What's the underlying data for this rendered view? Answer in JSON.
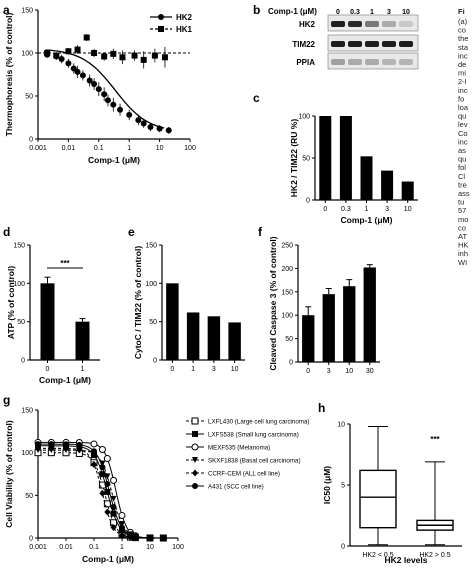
{
  "panels": {
    "a": "a",
    "b": "b",
    "c": "c",
    "d": "d",
    "e": "e",
    "f": "f",
    "g": "g",
    "h": "h"
  },
  "side_caption": {
    "heading": "Fi",
    "lines": [
      "(a)",
      "co",
      "the",
      "sta",
      "inc",
      "de",
      "mi",
      "2-I",
      "inc",
      "fo",
      "loa",
      "qu",
      "lev",
      "Co",
      "inc",
      "as",
      "qu",
      "fol",
      "Cl",
      "tre",
      "ass",
      "tu",
      "57",
      "mo",
      "co",
      "AT",
      "HK",
      "inh",
      "WI"
    ]
  },
  "western_blot": {
    "conc_label": "Comp-1 (μM)",
    "lanes": [
      "0",
      "0.3",
      "1",
      "3",
      "10"
    ],
    "rows": [
      "HK2",
      "TIM22",
      "PPIA"
    ],
    "band_intensity": {
      "HK2": [
        1.0,
        0.95,
        0.55,
        0.3,
        0.15
      ],
      "TIM22": [
        1.0,
        1.0,
        1.0,
        1.0,
        1.0
      ],
      "PPIA": [
        0.35,
        0.3,
        0.3,
        0.25,
        0.25
      ]
    }
  },
  "chart_data": [
    {
      "id": "a",
      "type": "scatter",
      "xlabel": "Comp-1 (μM)",
      "ylabel": "Thermophoresis (% of control)",
      "xscale": "log",
      "xlim": [
        0.001,
        100
      ],
      "ylim": [
        0,
        150
      ],
      "xticks": [
        "0.001",
        "0.01",
        "0.1",
        "1",
        "10",
        "100"
      ],
      "yticks": [
        "0",
        "50",
        "100",
        "150"
      ],
      "legend_position": "top-right",
      "series": [
        {
          "name": "HK2",
          "marker": "circle",
          "line": "solid",
          "fit": {
            "ec50": 0.35,
            "top": 105,
            "bottom": 8,
            "hill": 0.8
          },
          "x": [
            0.002,
            0.004,
            0.006,
            0.01,
            0.015,
            0.02,
            0.03,
            0.05,
            0.07,
            0.1,
            0.15,
            0.2,
            0.3,
            0.5,
            1,
            2,
            3,
            5,
            10,
            20
          ],
          "y": [
            98,
            96,
            93,
            88,
            82,
            78,
            74,
            68,
            64,
            58,
            52,
            45,
            40,
            34,
            28,
            22,
            18,
            14,
            12,
            10
          ],
          "err": [
            3,
            4,
            5,
            5,
            6,
            7,
            6,
            7,
            7,
            8,
            8,
            7,
            8,
            7,
            6,
            6,
            5,
            5,
            4,
            4
          ]
        },
        {
          "name": "HK1",
          "marker": "square",
          "line": "dashed",
          "x": [
            0.002,
            0.004,
            0.01,
            0.02,
            0.04,
            0.07,
            0.15,
            0.3,
            0.6,
            1.5,
            3,
            7,
            15
          ],
          "y": [
            100,
            97,
            102,
            104,
            118,
            100,
            96,
            99,
            95,
            97,
            92,
            97,
            95
          ],
          "err": [
            3,
            4,
            4,
            5,
            4,
            5,
            5,
            6,
            8,
            6,
            10,
            8,
            12
          ]
        }
      ]
    },
    {
      "id": "c",
      "type": "bar",
      "xlabel": "Comp-1 (μM)",
      "ylabel": "HK2 / TIM22 (RU %)",
      "categories": [
        "0",
        "0.3",
        "1",
        "3",
        "10"
      ],
      "values": [
        100,
        100,
        52,
        35,
        22
      ],
      "ylim": [
        0,
        100
      ],
      "yticks": [
        "0",
        "50",
        "100"
      ]
    },
    {
      "id": "d",
      "type": "bar",
      "xlabel": "Comp-1 (μM)",
      "ylabel": "ATP (% of control)",
      "categories": [
        "0",
        "1"
      ],
      "values": [
        100,
        50
      ],
      "err": [
        8,
        4
      ],
      "ylim": [
        0,
        150
      ],
      "yticks": [
        "0",
        "50",
        "100",
        "150"
      ],
      "annotation": "***"
    },
    {
      "id": "e",
      "type": "bar",
      "xlabel": "",
      "ylabel": "CytoC / TIM22 (% of control)",
      "categories": [
        "0",
        "1",
        "3",
        "10"
      ],
      "values": [
        100,
        62,
        57,
        49
      ],
      "ylim": [
        0,
        150
      ],
      "yticks": [
        "0",
        "50",
        "100",
        "150"
      ]
    },
    {
      "id": "f",
      "type": "bar",
      "xlabel": "",
      "ylabel": "Cleaved Caspase 3 (% of control)",
      "categories": [
        "0",
        "3",
        "10",
        "30"
      ],
      "values": [
        100,
        145,
        162,
        202
      ],
      "err": [
        18,
        12,
        14,
        6
      ],
      "ylim": [
        0,
        250
      ],
      "yticks": [
        "0",
        "50",
        "100",
        "150",
        "200",
        "250"
      ]
    },
    {
      "id": "g",
      "type": "line",
      "xlabel": "Comp-1 (μM)",
      "ylabel": "Cell Viability (% of control)",
      "xscale": "log",
      "xlim": [
        0.001,
        100
      ],
      "ylim": [
        0,
        150
      ],
      "xticks": [
        "0.001",
        "0.01",
        "0.1",
        "1",
        "10",
        "100"
      ],
      "yticks": [
        "0",
        "50",
        "100",
        "150"
      ],
      "legend_position": "right",
      "series": [
        {
          "name": "LXFL430 (Large cell lung carcinoma)",
          "marker": "square-open",
          "line": "dashed",
          "ec50": 0.25,
          "top": 100,
          "hill": 2.2
        },
        {
          "name": "LXFS538 (Small lung carcinoma)",
          "marker": "square",
          "line": "solid",
          "ec50": 0.3,
          "top": 108,
          "hill": 2.0
        },
        {
          "name": "MEXF535 (Melanoma)",
          "marker": "circle-open",
          "line": "solid",
          "ec50": 0.6,
          "top": 112,
          "hill": 2.3
        },
        {
          "name": "SKXF1838 (Basal cell carcinoma)",
          "marker": "triangle-down",
          "line": "dashed",
          "ec50": 0.45,
          "top": 103,
          "hill": 2.1
        },
        {
          "name": "CCRF-CEM (ALL cell line)",
          "marker": "diamond",
          "line": "dashed",
          "ec50": 0.2,
          "top": 105,
          "hill": 2.2
        },
        {
          "name": "A431 (SCC cell line)",
          "marker": "circle",
          "line": "solid",
          "ec50": 0.35,
          "top": 110,
          "hill": 2.0
        }
      ]
    },
    {
      "id": "h",
      "type": "box",
      "xlabel": "HK2 levels",
      "ylabel": "IC50 (μM)",
      "ylim": [
        0,
        10
      ],
      "yticks": [
        "0",
        "5",
        "10"
      ],
      "categories": [
        "HK2 < 0.5",
        "HK2 > 0.5"
      ],
      "boxes": [
        {
          "min": 0.1,
          "q1": 1.5,
          "median": 4.0,
          "q3": 6.2,
          "max": 9.8
        },
        {
          "min": 0.1,
          "q1": 1.3,
          "median": 1.7,
          "q3": 2.1,
          "max": 6.9
        }
      ],
      "annotation": "***"
    }
  ]
}
